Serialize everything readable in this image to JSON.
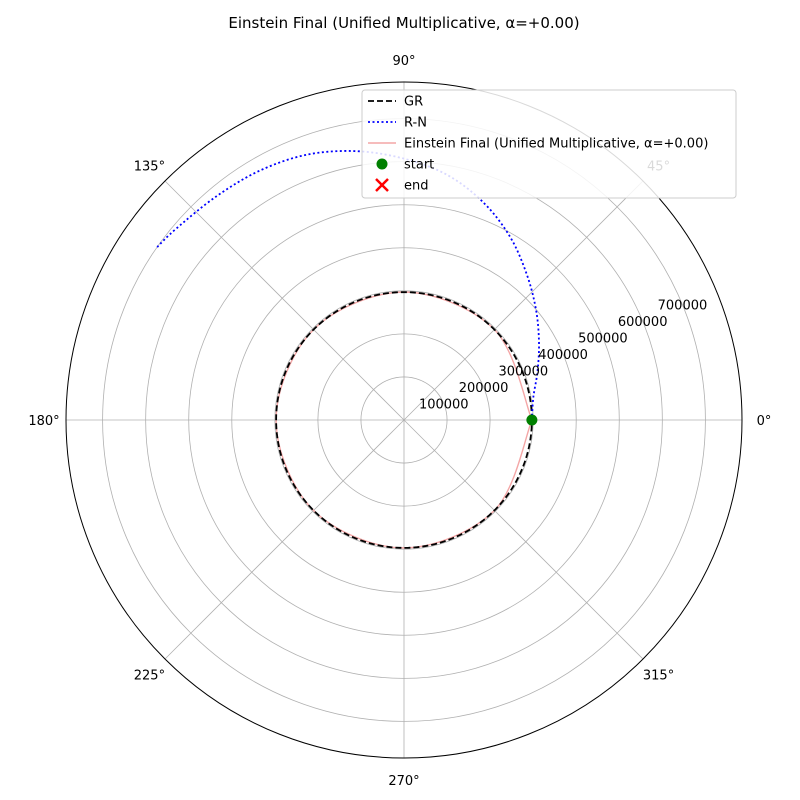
{
  "chart_data": {
    "type": "line",
    "projection": "polar",
    "title": "Einstein Final (Unified Multiplicative, α=+0.00)",
    "theta_unit": "degrees",
    "theta_ticks": [
      0,
      45,
      90,
      135,
      180,
      225,
      270,
      315
    ],
    "theta_tick_labels": [
      "0°",
      "45°",
      "90°",
      "135°",
      "180°",
      "225°",
      "270°",
      "315°"
    ],
    "r_ticks": [
      100000,
      200000,
      300000,
      400000,
      500000,
      600000,
      700000
    ],
    "r_tick_labels": [
      "100000",
      "200000",
      "300000",
      "400000",
      "500000",
      "600000",
      "700000"
    ],
    "rlim": [
      0,
      785000
    ],
    "r_label_angle_deg": 22.5,
    "grid": true,
    "legend_placement": "upper-right",
    "series": [
      {
        "name": "GR",
        "kind": "line",
        "color": "#000000",
        "linestyle": "dashed",
        "points": [
          [
            0,
            297000
          ],
          [
            30,
            297000
          ],
          [
            60,
            297000
          ],
          [
            90,
            297000
          ],
          [
            120,
            297000
          ],
          [
            150,
            297000
          ],
          [
            180,
            297000
          ],
          [
            210,
            297000
          ],
          [
            240,
            297000
          ],
          [
            270,
            297000
          ],
          [
            300,
            297000
          ],
          [
            330,
            297000
          ],
          [
            360,
            297000
          ]
        ]
      },
      {
        "name": "R-N",
        "kind": "line",
        "color": "#0000ff",
        "linestyle": "dotted",
        "points": [
          [
            0,
            297000
          ],
          [
            10,
            305000
          ],
          [
            20,
            330000
          ],
          [
            30,
            362000
          ],
          [
            40,
            400000
          ],
          [
            50,
            443000
          ],
          [
            60,
            492000
          ],
          [
            70,
            538000
          ],
          [
            80,
            578000
          ],
          [
            90,
            607000
          ],
          [
            100,
            634000
          ],
          [
            110,
            656000
          ],
          [
            120,
            669000
          ],
          [
            130,
            678000
          ],
          [
            140,
            691000
          ],
          [
            145,
            700000
          ]
        ]
      },
      {
        "name": "Einstein Final (Unified Multiplicative, α=+0.00)",
        "kind": "line",
        "color": "#f4a6a6",
        "linestyle": "solid",
        "points": [
          [
            0,
            297000
          ],
          [
            45,
            297000
          ],
          [
            90,
            297000
          ],
          [
            135,
            297000
          ],
          [
            180,
            297000
          ],
          [
            225,
            297000
          ],
          [
            270,
            297000
          ],
          [
            315,
            297000
          ],
          [
            360,
            297000
          ]
        ]
      },
      {
        "name": "start",
        "kind": "marker",
        "marker": "circle",
        "color": "#008000",
        "points": [
          [
            0,
            297000
          ]
        ]
      },
      {
        "name": "end",
        "kind": "marker",
        "marker": "x",
        "color": "#ff0000",
        "points": [
          [
            0,
            297000
          ]
        ]
      }
    ]
  }
}
